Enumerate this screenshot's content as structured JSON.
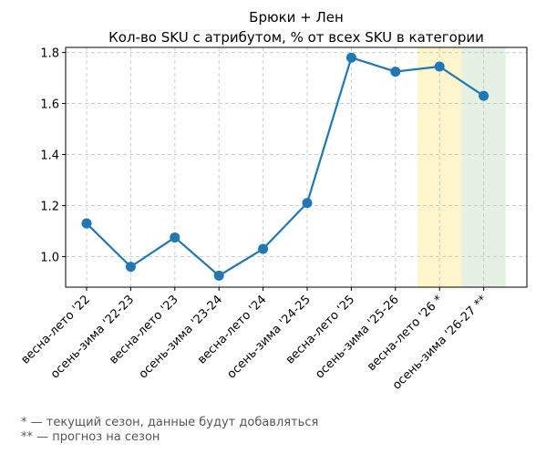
{
  "chart_data": {
    "type": "line",
    "title": "Брюки + Лен",
    "subtitle": "Кол-во SKU с атрибутом, % от всех SKU в категории",
    "xlabel": "",
    "ylabel": "",
    "categories": [
      "весна-лето '22",
      "осень-зима '22-23",
      "весна-лето '23",
      "осень-зима '23-24",
      "весна-лето '24",
      "осень-зима '24-25",
      "весна-лето '25",
      "осень-зима '25-26",
      "весна-лето '26 *",
      "осень-зима '26-27 **"
    ],
    "series": [
      {
        "values": [
          1.13,
          0.96,
          1.075,
          0.925,
          1.03,
          1.21,
          1.78,
          1.725,
          1.745,
          1.63
        ]
      }
    ],
    "ylim": [
      0.88,
      1.82
    ],
    "yticks": [
      1.0,
      1.2,
      1.4,
      1.6,
      1.8
    ],
    "grid": true,
    "line_color": "#1f77b4",
    "highlights": [
      {
        "category": "весна-лето '26 *",
        "color": "#fff5cc"
      },
      {
        "category": "осень-зима '26-27 **",
        "color": "#e5f1e3"
      }
    ]
  },
  "notes": {
    "current_season": "* — текущий сезон, данные будут добавляться",
    "forecast": "** — прогноз на сезон"
  }
}
